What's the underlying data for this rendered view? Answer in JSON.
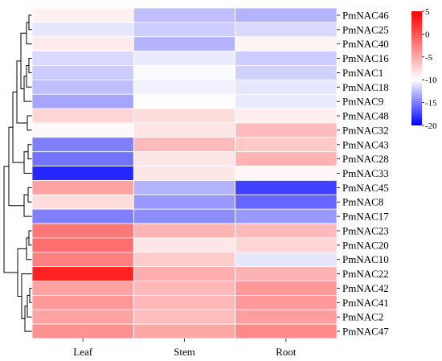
{
  "chart_data": {
    "type": "heatmap",
    "columns": [
      "Leaf",
      "Stem",
      "Root"
    ],
    "rows": [
      "PmNAC46",
      "PmNAC25",
      "PmNAC40",
      "PmNAC16",
      "PmNAC1",
      "PmNAC18",
      "PmNAC9",
      "PmNAC48",
      "PmNAC32",
      "PmNAC43",
      "PmNAC28",
      "PmNAC33",
      "PmNAC45",
      "PmNAC8",
      "PmNAC17",
      "PmNAC23",
      "PmNAC20",
      "PmNAC10",
      "PmNAC22",
      "PmNAC42",
      "PmNAC41",
      "PmNAC2",
      "PmNAC47"
    ],
    "values": [
      [
        -9.2,
        -12.5,
        -13.0
      ],
      [
        -11.0,
        -12.0,
        -11.5
      ],
      [
        -8.8,
        -13.0,
        -9.3
      ],
      [
        -11.5,
        -10.8,
        -12.0
      ],
      [
        -12.0,
        -10.2,
        -11.8
      ],
      [
        -12.5,
        -10.5,
        -11.0
      ],
      [
        -13.5,
        -9.8,
        -10.8
      ],
      [
        -7.5,
        -8.0,
        -9.0
      ],
      [
        -9.6,
        -8.5,
        -6.0
      ],
      [
        -15.0,
        -6.0,
        -6.8
      ],
      [
        -15.5,
        -8.5,
        -5.5
      ],
      [
        -18.5,
        -8.5,
        -9.5
      ],
      [
        -4.5,
        -13.0,
        -17.5
      ],
      [
        -8.0,
        -14.0,
        -16.0
      ],
      [
        -15.0,
        -14.5,
        -14.0
      ],
      [
        -2.0,
        -5.5,
        -6.0
      ],
      [
        -1.5,
        -8.5,
        -7.5
      ],
      [
        -2.5,
        -7.0,
        -11.0
      ],
      [
        3.0,
        -5.2,
        -5.5
      ],
      [
        -4.5,
        -5.8,
        -4.0
      ],
      [
        -4.0,
        -5.8,
        -4.0
      ],
      [
        -4.5,
        -6.2,
        -4.3
      ],
      [
        -3.5,
        -4.8,
        -3.0
      ]
    ],
    "colorbar": {
      "min": -20,
      "max": 5,
      "ticks": [
        5,
        0,
        -5,
        -10,
        -15,
        -20
      ],
      "tick_labels": [
        "5",
        "0",
        "-5",
        "-10",
        "-15",
        "-20"
      ]
    },
    "colors": {
      "low": "#0000ff",
      "mid": "#ffffff",
      "high": "#ff0000",
      "midpoint": -10
    },
    "dendrogram": "row clustering tree on the left"
  }
}
